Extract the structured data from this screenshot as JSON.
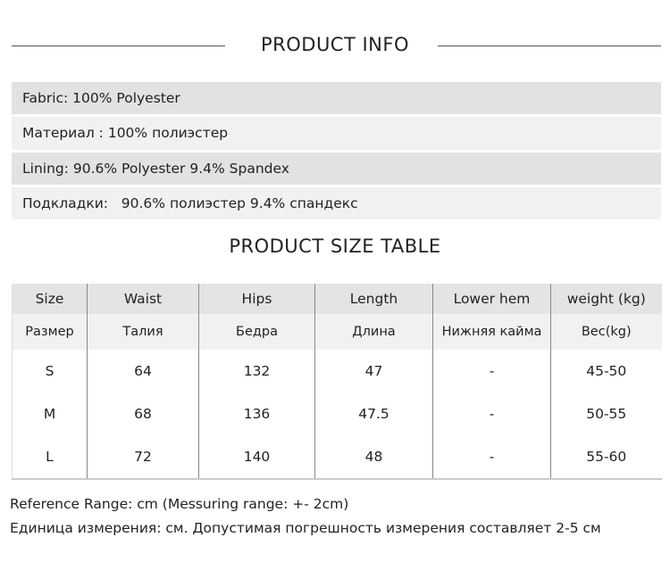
{
  "info": {
    "title": "PRODUCT INFO",
    "rows": [
      "Fabric: 100% Polyester",
      "Материал : 100% полиэстер",
      "Lining: 90.6% Polyester 9.4% Spandex",
      "Подкладки:   90.6% полиэстер 9.4% спандекс"
    ]
  },
  "size_table": {
    "title": "PRODUCT SIZE TABLE",
    "headers_en": [
      "Size",
      "Waist",
      "Hips",
      "Length",
      "Lower hem",
      "weight (kg)"
    ],
    "headers_ru": [
      "Размер",
      "Талия",
      "Бедра",
      "Длина",
      "Нижняя кайма",
      "Вес(kg)"
    ],
    "rows": [
      [
        "S",
        "64",
        "132",
        "47",
        "-",
        "45-50"
      ],
      [
        "M",
        "68",
        "136",
        "47.5",
        "-",
        "50-55"
      ],
      [
        "L",
        "72",
        "140",
        "48",
        "-",
        "55-60"
      ]
    ]
  },
  "notes": {
    "en": "Reference Range: cm (Messuring range: +- 2cm)",
    "ru": "Единица измерения: см. Допустимая погрешность измерения составляет 2-5 см"
  }
}
